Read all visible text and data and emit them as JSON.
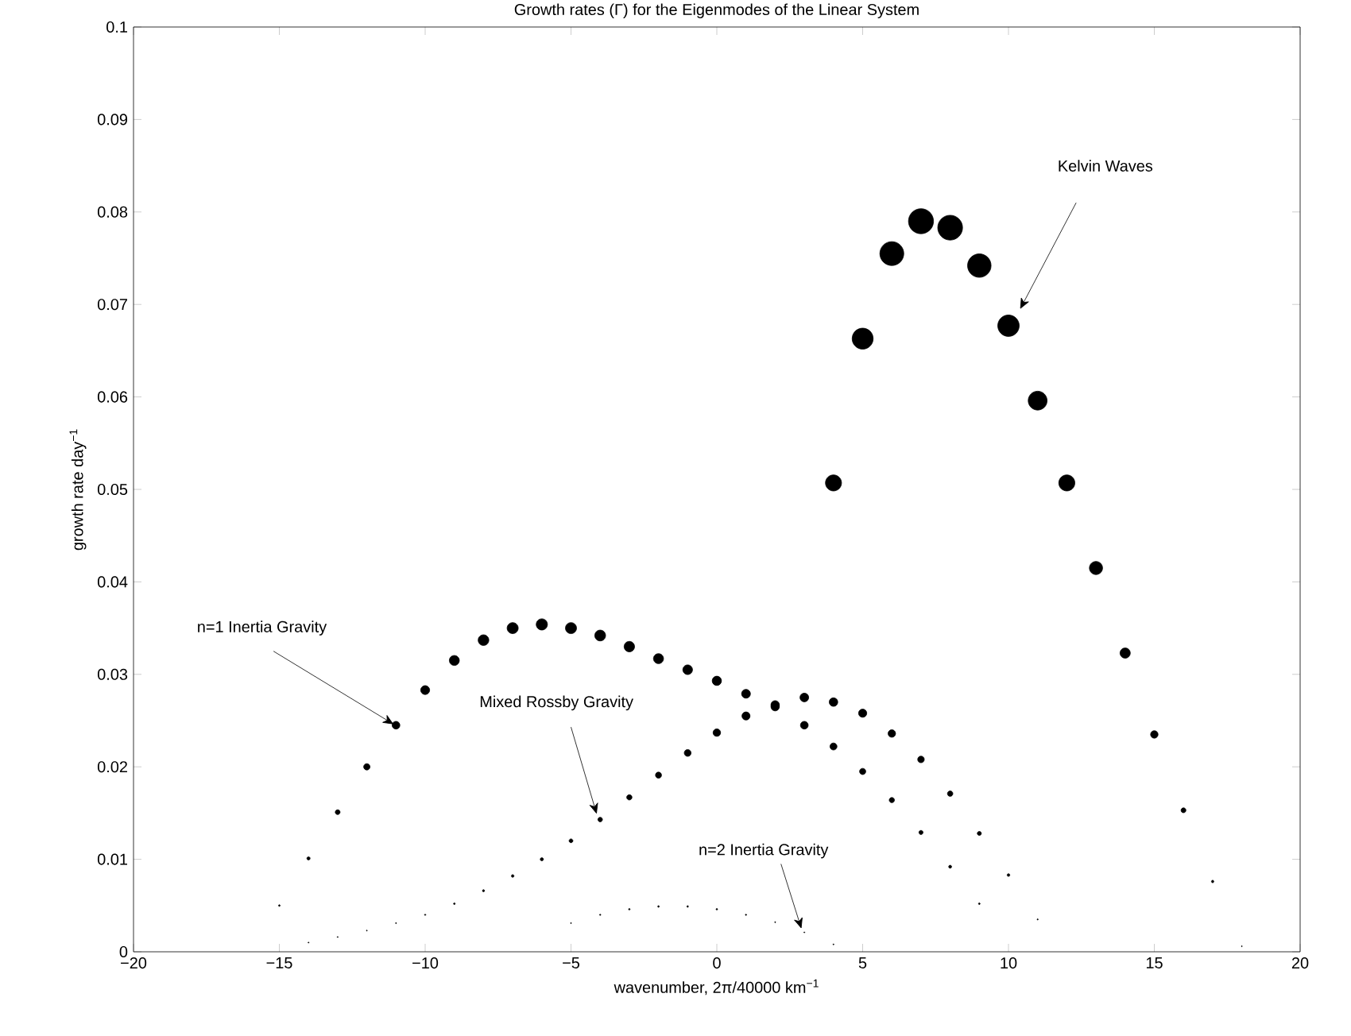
{
  "chart_data": {
    "type": "bubble",
    "title": "Growth rates (Γ) for the Eigenmodes of the Linear System",
    "xlabel": "wavenumber, 2π/40000 km$^{−1}$",
    "ylabel": "growth rate day$^{−1}$",
    "xlim": [
      -20,
      20
    ],
    "ylim": [
      0,
      0.1
    ],
    "xticks": [
      {
        "value": -20,
        "label": "−20"
      },
      {
        "value": -15,
        "label": "−15"
      },
      {
        "value": -10,
        "label": "−10"
      },
      {
        "value": -5,
        "label": "−5"
      },
      0,
      5,
      10,
      15,
      20
    ],
    "yticks": [
      0,
      0.01,
      0.02,
      0.03,
      0.04,
      0.05,
      0.06,
      0.07,
      0.08,
      0.09,
      0.1
    ],
    "grid": false,
    "series": [
      {
        "color": "#000000",
        "x": [
          4,
          5,
          6,
          7,
          8,
          9,
          10,
          11,
          12,
          13,
          14,
          15,
          16,
          17,
          18
        ],
        "values": [
          0.0507,
          0.0663,
          0.0755,
          0.079,
          0.0783,
          0.0742,
          0.0677,
          0.0596,
          0.0507,
          0.0415,
          0.0323,
          0.0235,
          0.0153,
          0.0076,
          0.0006
        ],
        "sizes": [
          0.412,
          0.704,
          0.913,
          1,
          0.982,
          0.882,
          0.734,
          0.569,
          0.412,
          0.276,
          0.167,
          0.0885,
          0.0375,
          0.0093,
          0.0001
        ]
      },
      {
        "color": "#000000",
        "x": [
          -14,
          -13,
          -12,
          -11,
          -10,
          -9,
          -8,
          -7,
          -6,
          -5,
          -4,
          -3,
          -2,
          -1,
          0,
          1,
          2,
          3,
          4,
          5,
          6,
          7,
          8,
          9,
          10,
          11
        ],
        "values": [
          0.0101,
          0.0151,
          0.02,
          0.0245,
          0.0283,
          0.0315,
          0.0337,
          0.035,
          0.0354,
          0.035,
          0.0342,
          0.033,
          0.0317,
          0.0305,
          0.0293,
          0.0279,
          0.0267,
          0.0275,
          0.027,
          0.0258,
          0.0236,
          0.0208,
          0.0171,
          0.0128,
          0.0083,
          0.0035
        ],
        "sizes": [
          0.0163,
          0.0365,
          0.0641,
          0.0962,
          0.128,
          0.159,
          0.182,
          0.196,
          0.201,
          0.196,
          0.187,
          0.174,
          0.161,
          0.149,
          0.138,
          0.125,
          0.114,
          0.121,
          0.117,
          0.107,
          0.0892,
          0.0693,
          0.0468,
          0.0262,
          0.011,
          0.002
        ]
      },
      {
        "color": "#000000",
        "x": [
          -14,
          -13,
          -12,
          -11,
          -10,
          -9,
          -8,
          -7,
          -6,
          -5,
          -4,
          -3,
          -2,
          -1,
          0,
          1,
          2,
          3,
          4,
          5,
          6,
          7,
          8,
          9
        ],
        "values": [
          0.001,
          0.0016,
          0.0023,
          0.0031,
          0.004,
          0.0052,
          0.0066,
          0.0082,
          0.01,
          0.012,
          0.0143,
          0.0167,
          0.0191,
          0.0215,
          0.0237,
          0.0255,
          0.0265,
          0.0245,
          0.0222,
          0.0195,
          0.0164,
          0.0129,
          0.0092,
          0.0052
        ],
        "sizes": [
          0.0002,
          0.0004,
          0.0009,
          0.0015,
          0.0026,
          0.0043,
          0.007,
          0.0108,
          0.016,
          0.0231,
          0.0328,
          0.0447,
          0.0584,
          0.074,
          0.09,
          0.104,
          0.1125,
          0.0962,
          0.079,
          0.0609,
          0.0431,
          0.0267,
          0.0136,
          0.0043
        ]
      },
      {
        "color": "#000000",
        "x": [
          -15,
          -5,
          -4,
          -3,
          -2,
          -1,
          0,
          1,
          2,
          3,
          4
        ],
        "values": [
          0.005,
          0.0031,
          0.004,
          0.0046,
          0.0049,
          0.0049,
          0.0046,
          0.004,
          0.0032,
          0.0021,
          0.0008
        ],
        "sizes": [
          0.004,
          0.0015,
          0.0026,
          0.0034,
          0.0038,
          0.0038,
          0.0034,
          0.0026,
          0.0016,
          0.0007,
          0.0001
        ]
      }
    ],
    "annotations": [
      "Kelvin Waves",
      {
        "text": "n=1 Inertia Gravity",
        "x": -11,
        "y": 0.0245
      },
      {
        "text": "Mixed Rossby Gravity",
        "x": -4,
        "y": 0.0143
      },
      {
        "text": "n=2 Inertia Gravity",
        "x": 3,
        "y": 0.0021
      }
    ]
  }
}
